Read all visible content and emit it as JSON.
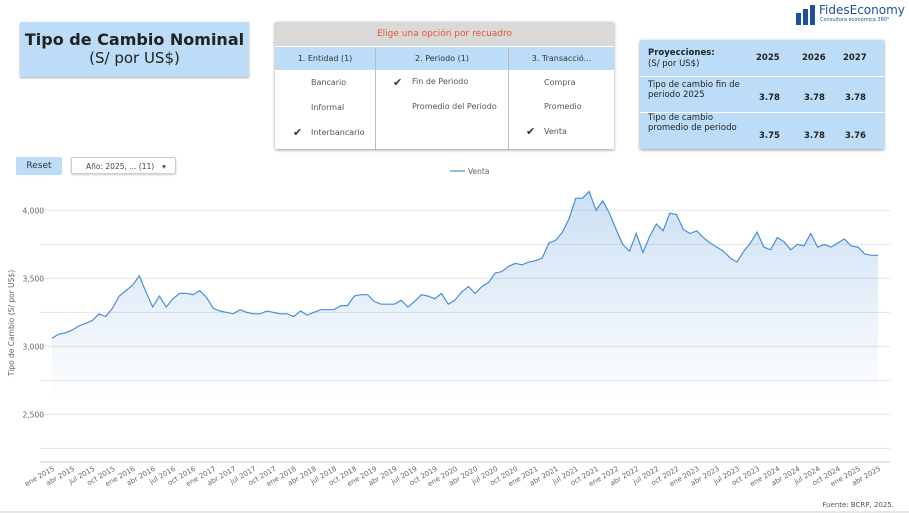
{
  "header": {
    "title": "Tipo de Cambio Nominal",
    "subtitle": "(S/ por US$)"
  },
  "logo": {
    "name": "FidesEconomy",
    "tagline": "Consultora económica 360°"
  },
  "filters": {
    "title": "Elige una opción por recuadro",
    "columns": [
      {
        "label": "1. Entidad (1)",
        "options": [
          {
            "label": "Bancario",
            "checked": false
          },
          {
            "label": "Informal",
            "checked": false
          },
          {
            "label": "Interbancario",
            "checked": true
          }
        ]
      },
      {
        "label": "2. Periodo (1)",
        "options": [
          {
            "label": "Fin de Periodo",
            "checked": true
          },
          {
            "label": "Promedio del Periodo",
            "checked": false
          }
        ]
      },
      {
        "label": "3. Transacció...",
        "options": [
          {
            "label": "Compra",
            "checked": false
          },
          {
            "label": "Promedio",
            "checked": false
          },
          {
            "label": "Venta",
            "checked": true
          }
        ]
      }
    ]
  },
  "projections": {
    "title": "Proyecciones:",
    "subtitle": "(S/ por US$)",
    "years": [
      "2025",
      "2026",
      "2027"
    ],
    "rows": [
      {
        "label": "Tipo de cambio fin de periodo 2025",
        "values": [
          "3.78",
          "3.78",
          "3.78"
        ]
      },
      {
        "label": "Tipo de cambio promedio de periodo",
        "values": [
          "3.75",
          "3.78",
          "3.76"
        ]
      }
    ]
  },
  "controls": {
    "reset": "Reset",
    "year_filter": "Año: 2025, ... (11)"
  },
  "source": "Fuente: BCRP, 2025.",
  "chart_data": {
    "type": "line",
    "y_label": "Tipo de Cambio (S/ por US$)",
    "categories": [
      "ene 2015",
      null,
      null,
      "abr 2015",
      null,
      null,
      "jul 2015",
      null,
      null,
      "oct 2015",
      null,
      null,
      "ene 2016",
      null,
      null,
      "abr 2016",
      null,
      null,
      "jul 2016",
      null,
      null,
      "oct 2016",
      null,
      null,
      "ene 2017",
      null,
      null,
      "abr 2017",
      null,
      null,
      "jul 2017",
      null,
      null,
      "oct 2017",
      null,
      null,
      "ene 2018",
      null,
      null,
      "abr 2018",
      null,
      null,
      "jul 2018",
      null,
      null,
      "oct 2018",
      null,
      null,
      "ene 2019",
      null,
      null,
      "abr 2019",
      null,
      null,
      "jul 2019",
      null,
      null,
      "oct 2019",
      null,
      null,
      "ene 2020",
      null,
      null,
      "abr 2020",
      null,
      null,
      "jul 2020",
      null,
      null,
      "oct 2020",
      null,
      null,
      "ene 2021",
      null,
      null,
      "abr 2021",
      null,
      null,
      "jul 2021",
      null,
      null,
      "oct 2021",
      null,
      null,
      "ene 2022",
      null,
      null,
      "abr 2022",
      null,
      null,
      "jul 2022",
      null,
      null,
      "oct 2022",
      null,
      null,
      "ene 2023",
      null,
      null,
      "abr 2023",
      null,
      null,
      "jul 2023",
      null,
      null,
      "oct 2023",
      null,
      null,
      "ene 2024",
      null,
      null,
      "abr 2024",
      null,
      null,
      "jul 2024",
      null,
      null,
      "oct 2024",
      null,
      null,
      "ene 2025",
      null,
      null,
      "abr 2025"
    ],
    "series": [
      {
        "name": "Venta",
        "color": "#4a8fd8",
        "values": [
          3060,
          3090,
          3100,
          3120,
          3150,
          3170,
          3190,
          3240,
          3220,
          3280,
          3370,
          3410,
          3450,
          3520,
          3400,
          3290,
          3370,
          3290,
          3350,
          3390,
          3390,
          3380,
          3410,
          3360,
          3280,
          3260,
          3250,
          3240,
          3270,
          3250,
          3240,
          3240,
          3260,
          3250,
          3240,
          3240,
          3220,
          3260,
          3230,
          3250,
          3270,
          3270,
          3270,
          3300,
          3300,
          3370,
          3380,
          3380,
          3330,
          3310,
          3310,
          3310,
          3340,
          3290,
          3330,
          3380,
          3370,
          3350,
          3390,
          3310,
          3340,
          3400,
          3440,
          3390,
          3440,
          3470,
          3540,
          3550,
          3590,
          3610,
          3600,
          3620,
          3630,
          3650,
          3760,
          3780,
          3840,
          3940,
          4090,
          4090,
          4140,
          4000,
          4070,
          3980,
          3860,
          3750,
          3700,
          3830,
          3690,
          3810,
          3900,
          3850,
          3980,
          3970,
          3860,
          3830,
          3850,
          3800,
          3760,
          3730,
          3700,
          3650,
          3620,
          3700,
          3760,
          3840,
          3730,
          3710,
          3800,
          3770,
          3710,
          3750,
          3740,
          3830,
          3730,
          3750,
          3730,
          3760,
          3790,
          3740,
          3730,
          3680,
          3670,
          3670
        ]
      }
    ],
    "ylim": [
      2150,
      4150
    ],
    "yticks": [
      {
        "value": 2500,
        "label": "2,500"
      },
      {
        "value": 3000,
        "label": "3,000"
      },
      {
        "value": 3500,
        "label": "3,500"
      },
      {
        "value": 4000,
        "label": "4,000"
      }
    ],
    "ygrid": [
      2250,
      2750,
      3250,
      3750
    ],
    "grid": true,
    "legend": "top"
  }
}
